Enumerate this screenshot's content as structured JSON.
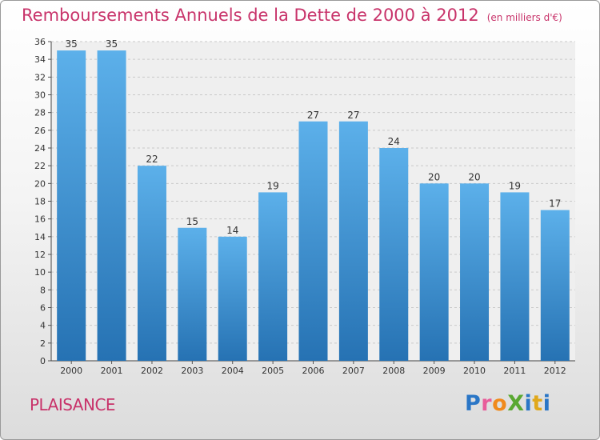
{
  "header": {
    "title": "Remboursements Annuels de la Dette de 2000 à 2012",
    "subtitle": "(en milliers d'€)"
  },
  "footer": {
    "commune": "PLAISANCE"
  },
  "logo": {
    "text": "ProXiti",
    "letter_colors": [
      "#2a76c6",
      "#e85d9a",
      "#f08a1c",
      "#5aa832",
      "#2a76c6",
      "#e0a81c",
      "#2a76c6"
    ]
  },
  "colors": {
    "title": "#c8336a",
    "bar_top": "#5cb0ea",
    "bar_bottom": "#2672b3"
  },
  "chart_data": {
    "type": "bar",
    "categories": [
      "2000",
      "2001",
      "2002",
      "2003",
      "2004",
      "2005",
      "2006",
      "2007",
      "2008",
      "2009",
      "2010",
      "2011",
      "2012"
    ],
    "values": [
      35,
      35,
      22,
      15,
      14,
      19,
      27,
      27,
      24,
      20,
      20,
      19,
      17
    ],
    "title": "Remboursements Annuels de la Dette de 2000 à 2012",
    "subtitle": "(en milliers d'€)",
    "ylim": [
      0,
      36
    ],
    "yticks": [
      0,
      2,
      4,
      6,
      8,
      10,
      12,
      14,
      16,
      18,
      20,
      22,
      24,
      26,
      28,
      30,
      32,
      34,
      36
    ],
    "grid": true,
    "data_labels": true
  }
}
